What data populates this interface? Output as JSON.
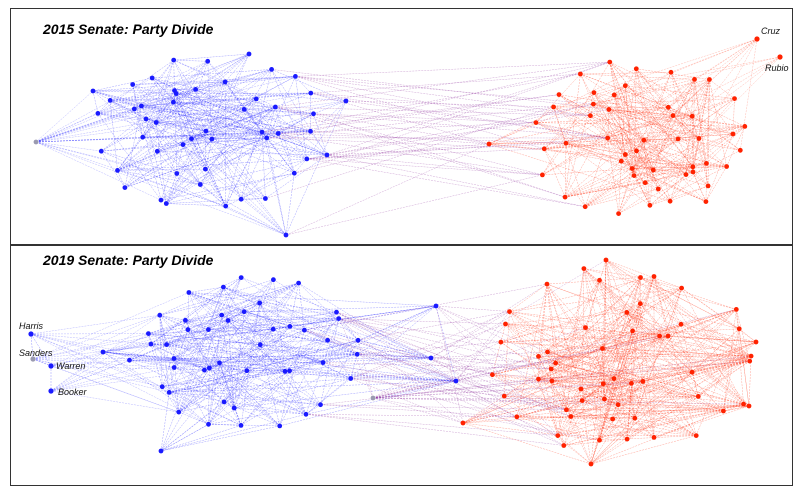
{
  "colors": {
    "democrat": "#1a1aff",
    "republican": "#ff2200",
    "independent": "#9a9ab0",
    "cross_edge": "#8a2a9a",
    "border": "#333333"
  },
  "panels": [
    {
      "id": "top",
      "title": "2015 Senate: Party Divide",
      "labels": {
        "cruz": "Cruz",
        "rubio": "Rubio"
      }
    },
    {
      "id": "bottom",
      "title": "2019 Senate: Party Divide",
      "labels": {
        "harris": "Harris",
        "sanders": "Sanders",
        "warren": "Warren",
        "booker": "Booker"
      }
    }
  ]
}
